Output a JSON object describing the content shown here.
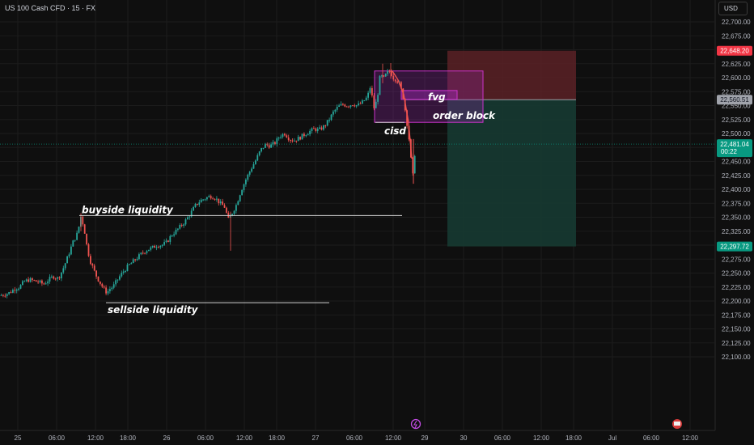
{
  "header": {
    "symbol_title": "US 100 Cash CFD · 15 · FX",
    "currency": "USD"
  },
  "chart_data": {
    "type": "candlestick",
    "y_axis": {
      "range": [
        22087.5,
        22712.5
      ],
      "ticks": [
        "22,700.00",
        "22,675.00",
        "22,650.00",
        "22,625.00",
        "22,600.00",
        "22,575.00",
        "22,550.00",
        "22,525.00",
        "22,500.00",
        "22,475.00",
        "22,450.00",
        "22,425.00",
        "22,400.00",
        "22,375.00",
        "22,350.00",
        "22,325.00",
        "22,300.00",
        "22,275.00",
        "22,250.00",
        "22,225.00",
        "22,200.00",
        "22,175.00",
        "22,150.00",
        "22,125.00",
        "22,100.00"
      ]
    },
    "x_axis": {
      "ticks": [
        "25",
        "06:00",
        "12:00",
        "18:00",
        "26",
        "06:00",
        "12:00",
        "18:00",
        "27",
        "06:00",
        "12:00",
        "29",
        "30",
        "06:00",
        "12:00",
        "18:00",
        "Jul",
        "06:00",
        "12:00"
      ]
    },
    "price_path": [
      [
        0,
        22210
      ],
      [
        6,
        22212
      ],
      [
        12,
        22215
      ],
      [
        18,
        22222
      ],
      [
        24,
        22225
      ],
      [
        30,
        22235
      ],
      [
        36,
        22238
      ],
      [
        42,
        22236
      ],
      [
        48,
        22234
      ],
      [
        54,
        22230
      ],
      [
        60,
        22238
      ],
      [
        66,
        22244
      ],
      [
        72,
        22240
      ],
      [
        78,
        22258
      ],
      [
        84,
        22280
      ],
      [
        90,
        22305
      ],
      [
        96,
        22322
      ],
      [
        100,
        22352
      ],
      [
        104,
        22330
      ],
      [
        108,
        22292
      ],
      [
        112,
        22270
      ],
      [
        116,
        22255
      ],
      [
        120,
        22242
      ],
      [
        124,
        22232
      ],
      [
        128,
        22222
      ],
      [
        132,
        22215
      ],
      [
        136,
        22222
      ],
      [
        140,
        22226
      ],
      [
        146,
        22240
      ],
      [
        152,
        22252
      ],
      [
        158,
        22262
      ],
      [
        164,
        22270
      ],
      [
        170,
        22278
      ],
      [
        176,
        22286
      ],
      [
        182,
        22292
      ],
      [
        188,
        22295
      ],
      [
        194,
        22300
      ],
      [
        200,
        22300
      ],
      [
        206,
        22305
      ],
      [
        212,
        22318
      ],
      [
        218,
        22326
      ],
      [
        224,
        22335
      ],
      [
        230,
        22345
      ],
      [
        236,
        22358
      ],
      [
        242,
        22372
      ],
      [
        248,
        22380
      ],
      [
        254,
        22384
      ],
      [
        260,
        22388
      ],
      [
        266,
        22385
      ],
      [
        272,
        22375
      ],
      [
        278,
        22368
      ],
      [
        282,
        22345
      ],
      [
        286,
        22355
      ],
      [
        292,
        22372
      ],
      [
        298,
        22398
      ],
      [
        304,
        22418
      ],
      [
        310,
        22436
      ],
      [
        316,
        22452
      ],
      [
        322,
        22470
      ],
      [
        328,
        22480
      ],
      [
        334,
        22478
      ],
      [
        340,
        22483
      ],
      [
        346,
        22496
      ],
      [
        352,
        22500
      ],
      [
        358,
        22490
      ],
      [
        364,
        22488
      ],
      [
        370,
        22492
      ],
      [
        376,
        22498
      ],
      [
        382,
        22503
      ],
      [
        388,
        22508
      ],
      [
        394,
        22506
      ],
      [
        400,
        22512
      ],
      [
        406,
        22523
      ],
      [
        412,
        22538
      ],
      [
        418,
        22548
      ],
      [
        424,
        22552
      ],
      [
        430,
        22550
      ],
      [
        436,
        22553
      ],
      [
        442,
        22550
      ],
      [
        448,
        22556
      ],
      [
        454,
        22565
      ],
      [
        458,
        22585
      ],
      [
        462,
        22545
      ],
      [
        466,
        22560
      ],
      [
        470,
        22605
      ],
      [
        474,
        22598
      ],
      [
        478,
        22608
      ],
      [
        482,
        22612
      ],
      [
        486,
        22600
      ],
      [
        490,
        22596
      ],
      [
        494,
        22588
      ],
      [
        498,
        22568
      ],
      [
        502,
        22530
      ],
      [
        506,
        22485
      ],
      [
        510,
        22420
      ],
      [
        513,
        22468
      ],
      [
        515,
        22480
      ]
    ],
    "levels": {
      "current_price": "22,481.04",
      "countdown": "00:22",
      "stop_loss": "22,648.20",
      "entry": "22,560.51",
      "take_profit": "22,297.72"
    },
    "annotations": {
      "buyside": "buyside liquidity",
      "sellside": "sellside liquidity",
      "fvg": "fvg",
      "order_block": "order block",
      "cisd": "cisd"
    },
    "colors": {
      "up": "#26a69a",
      "down": "#ef5350",
      "stop_zone": "#5a2126",
      "target_zone": "#163a32",
      "fvg_box": "#cc33cc",
      "stop_badge": "#f23645",
      "entry_badge": "#a0a3ab",
      "price_badge": "#089981"
    }
  }
}
